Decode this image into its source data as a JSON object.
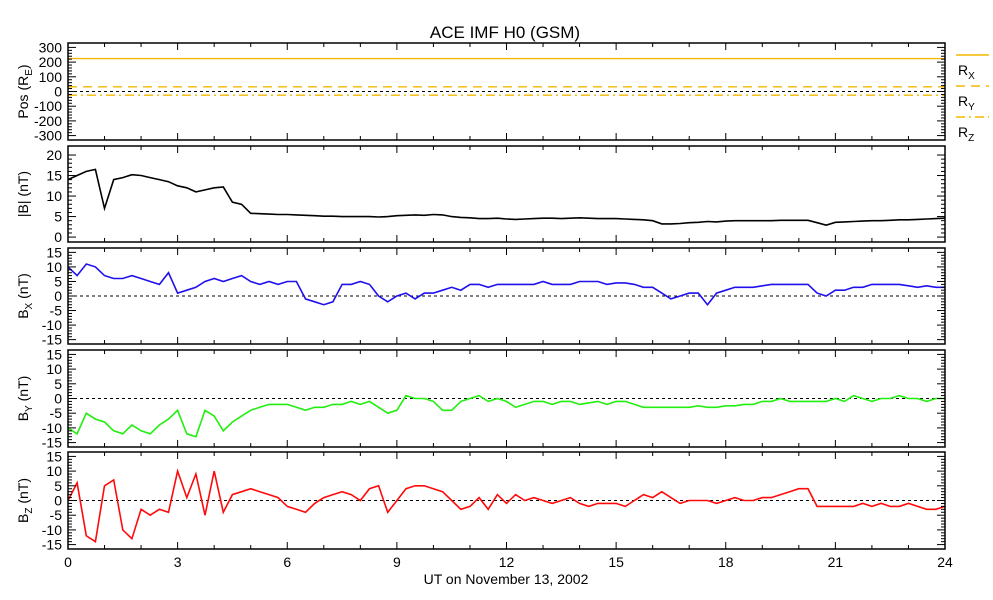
{
  "chart_data": {
    "type": "line",
    "title": "ACE IMF H0 (GSM)",
    "xlabel": "UT on November 13, 2002",
    "xlim": [
      0,
      24
    ],
    "x_ticks": [
      "0",
      "3",
      "6",
      "9",
      "12",
      "15",
      "18",
      "21",
      "24"
    ],
    "x_step_hours": 0.25,
    "panels": [
      {
        "id": "pos",
        "ylabel": {
          "main": "Pos (R",
          "sub": "E",
          "suffix": ")"
        },
        "ylim": [
          -330,
          330
        ],
        "y_ticks": [
          "300",
          "200",
          "100",
          "0",
          "-100",
          "-200",
          "-300"
        ],
        "zero_line": true,
        "series": [
          {
            "name": "R",
            "sub": "X",
            "color": "#f5b800",
            "style": "solid",
            "constant": 224
          },
          {
            "name": "R",
            "sub": "Y",
            "color": "#f5b800",
            "style": "dashed",
            "constant": 32
          },
          {
            "name": "R",
            "sub": "Z",
            "color": "#f5b800",
            "style": "dashdot",
            "constant": -25
          }
        ]
      },
      {
        "id": "bmag",
        "ylabel": {
          "main": "|B| (nT)",
          "sub": "",
          "suffix": ""
        },
        "ylim": [
          -1.2,
          22.2
        ],
        "y_ticks": [
          "20",
          "15",
          "10",
          "5",
          "0"
        ],
        "zero_line": false,
        "series": [
          {
            "name": "|B|",
            "color": "#000000",
            "values": [
              14,
              15,
              16,
              16.5,
              7,
              14,
              14.5,
              15.2,
              15,
              14.5,
              14,
              13.5,
              12.5,
              12,
              11,
              11.5,
              12,
              12.2,
              8.5,
              8,
              5.8,
              5.7,
              5.6,
              5.5,
              5.5,
              5.4,
              5.3,
              5.2,
              5.1,
              5.1,
              5.0,
              5.0,
              5.0,
              5.0,
              4.9,
              5.0,
              5.2,
              5.3,
              5.4,
              5.3,
              5.5,
              5.4,
              5.0,
              4.8,
              4.7,
              4.5,
              4.5,
              4.6,
              4.4,
              4.3,
              4.4,
              4.5,
              4.6,
              4.6,
              4.5,
              4.6,
              4.7,
              4.6,
              4.5,
              4.5,
              4.5,
              4.4,
              4.3,
              4.2,
              4.0,
              3.2,
              3.2,
              3.3,
              3.5,
              3.6,
              3.8,
              3.7,
              3.9,
              4.0,
              4.0,
              4.0,
              4.0,
              4.0,
              4.1,
              4.1,
              4.1,
              4.1,
              3.5,
              2.9,
              3.6,
              3.7,
              3.8,
              3.9,
              4.0,
              4.0,
              4.1,
              4.2,
              4.2,
              4.3,
              4.4,
              4.5,
              4.6
            ]
          }
        ]
      },
      {
        "id": "bx",
        "ylabel": {
          "main": "B",
          "sub": "X",
          "suffix": " (nT)"
        },
        "ylim": [
          -16.5,
          16.5
        ],
        "y_ticks": [
          "15",
          "10",
          "5",
          "0",
          "-5",
          "-10",
          "-15"
        ],
        "zero_line": true,
        "series": [
          {
            "name": "Bx",
            "color": "#2010ee",
            "values": [
              10,
              7,
              11,
              10,
              7,
              6,
              6,
              7,
              6,
              5,
              4,
              8,
              1,
              2,
              3,
              5,
              6,
              5,
              6,
              7,
              5,
              4,
              5,
              4,
              5,
              5,
              -1,
              -2,
              -3,
              -2,
              4,
              4,
              5,
              4,
              0,
              -2,
              0,
              1,
              -1,
              1,
              1,
              2,
              3,
              2,
              4,
              4,
              3,
              4,
              4,
              4,
              4,
              4,
              5,
              4,
              4,
              4,
              5,
              5,
              5,
              4,
              4.5,
              4.5,
              4,
              3,
              3,
              1,
              -1,
              0,
              1,
              1,
              -3,
              1,
              2,
              3,
              3,
              3,
              3.5,
              4,
              4,
              4,
              4,
              4,
              1,
              0,
              2,
              2,
              3,
              3,
              4,
              4,
              4,
              4,
              3.5,
              3,
              3.5,
              3,
              3
            ]
          }
        ]
      },
      {
        "id": "by",
        "ylabel": {
          "main": "B",
          "sub": "Y",
          "suffix": " (nT)"
        },
        "ylim": [
          -16.5,
          16.5
        ],
        "y_ticks": [
          "15",
          "10",
          "5",
          "0",
          "-5",
          "-10",
          "-15"
        ],
        "zero_line": true,
        "series": [
          {
            "name": "By",
            "color": "#22ee10",
            "values": [
              -10,
              -12,
              -5,
              -7,
              -8,
              -11,
              -12,
              -9,
              -11,
              -12,
              -9,
              -7,
              -4,
              -12,
              -13,
              -4,
              -6,
              -11,
              -8,
              -6,
              -4,
              -3,
              -2,
              -2,
              -2,
              -3,
              -4,
              -3,
              -3,
              -2,
              -2,
              -1,
              -2,
              -1,
              -3,
              -5,
              -4,
              1,
              0,
              0,
              -1,
              -4,
              -4,
              -1,
              0,
              1,
              -1,
              0,
              -1,
              -3,
              -2,
              -1,
              -1,
              -2,
              -1,
              -1,
              -2,
              -1.5,
              -1,
              -2,
              -1,
              -1,
              -2,
              -3,
              -3,
              -3,
              -3,
              -3,
              -3,
              -2.5,
              -3,
              -3,
              -2.5,
              -2.5,
              -2,
              -2,
              -1,
              -1,
              0,
              -1,
              -1,
              -1,
              -1,
              -1,
              0,
              -1,
              1,
              0,
              -1,
              0,
              0,
              1,
              0,
              0,
              -1,
              0,
              0
            ]
          }
        ]
      },
      {
        "id": "bz",
        "ylabel": {
          "main": "B",
          "sub": "Z",
          "suffix": " (nT)"
        },
        "ylim": [
          -16.5,
          16.5
        ],
        "y_ticks": [
          "15",
          "10",
          "5",
          "0",
          "-5",
          "-10",
          "-15"
        ],
        "zero_line": true,
        "series": [
          {
            "name": "Bz",
            "color": "#ff0a0a",
            "values": [
              0,
              6,
              -12,
              -14,
              5,
              7,
              -10,
              -13,
              -3,
              -5,
              -3,
              -4,
              10,
              1,
              9,
              -5,
              10,
              -4,
              2,
              3,
              4,
              3,
              2,
              1,
              -2,
              -3,
              -4,
              -1,
              1,
              2,
              3,
              2,
              0,
              4,
              5,
              -4,
              0,
              4,
              5,
              5,
              4,
              3,
              0,
              -3,
              -2,
              1,
              -3,
              2,
              -1,
              2,
              0,
              1,
              0,
              -1,
              0,
              1,
              -1,
              -2,
              -1,
              -1,
              -1,
              -2,
              0,
              2,
              1,
              3,
              1,
              -1,
              0,
              0,
              0,
              -1,
              0,
              1,
              0,
              0,
              1,
              1,
              2,
              3,
              4,
              4,
              -2,
              -2,
              -2,
              -2,
              -2,
              -1,
              -2,
              -1,
              -2,
              -2,
              -1,
              -2,
              -3,
              -3,
              -2
            ]
          }
        ]
      }
    ]
  }
}
